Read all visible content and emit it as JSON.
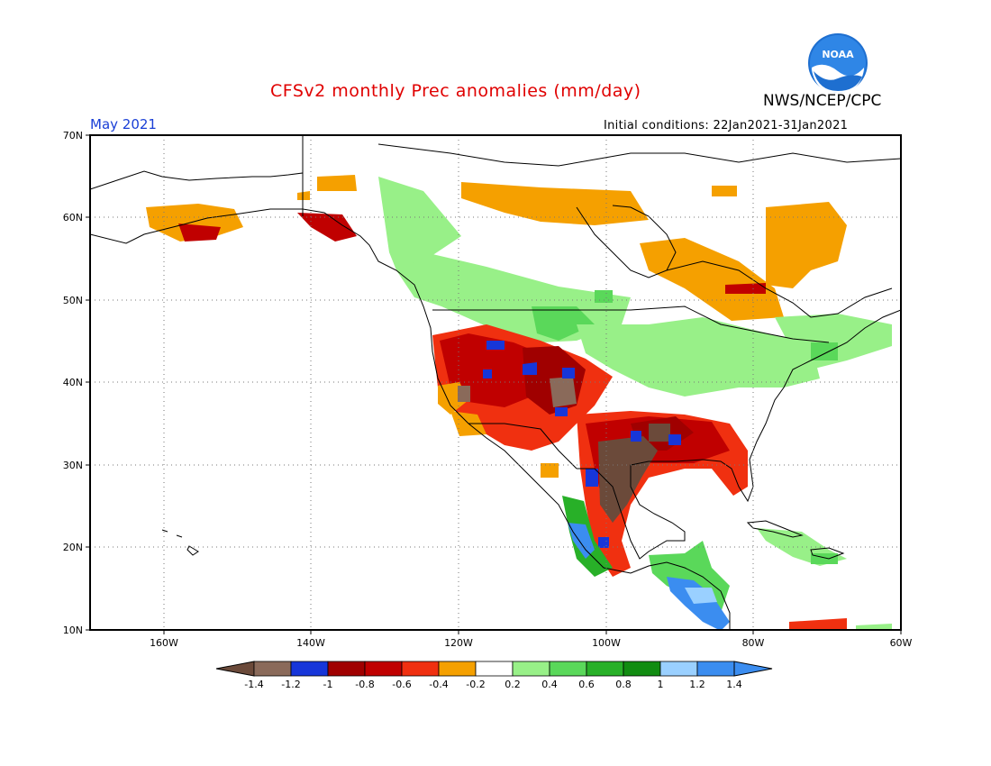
{
  "header": {
    "title": "CFSv2 monthly Prec anomalies (mm/day)",
    "agency": "NWS/NCEP/CPC",
    "month": "May 2021",
    "initial_conditions": "Initial conditions: 22Jan2021-31Jan2021",
    "logo_text": "NOAA"
  },
  "axes": {
    "lat_labels": [
      "70N",
      "60N",
      "50N",
      "40N",
      "30N",
      "20N",
      "10N"
    ],
    "lon_labels": [
      "160W",
      "140W",
      "120W",
      "100W",
      "80W",
      "60W"
    ]
  },
  "colorbar": {
    "labels": [
      "-1.4",
      "-1.2",
      "-1",
      "-0.8",
      "-0.6",
      "-0.4",
      "-0.2",
      "0.2",
      "0.4",
      "0.6",
      "0.8",
      "1",
      "1.2",
      "1.4"
    ],
    "colors": [
      "#6b4a3a",
      "#8a6a5a",
      "#1736d9",
      "#a00000",
      "#c00000",
      "#f03010",
      "#f5a000",
      "#ffffff",
      "#98f088",
      "#5ad85a",
      "#28b028",
      "#118c11",
      "#9ad0ff",
      "#3b8df0",
      "#3b8df0"
    ]
  },
  "colors": {
    "title": "#e00000",
    "month": "#1a3fd6",
    "map_frame": "#000000",
    "grid": "#777777"
  }
}
